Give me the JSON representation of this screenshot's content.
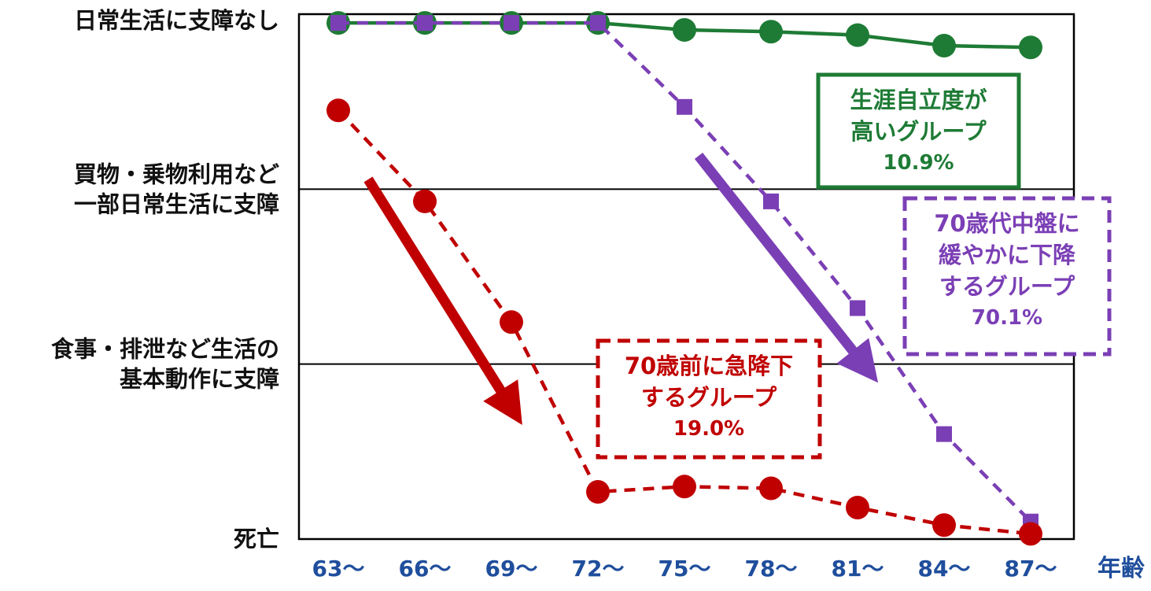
{
  "chart_data": {
    "type": "line",
    "xlabel": "年齢",
    "categories": [
      "63～",
      "66～",
      "69～",
      "72～",
      "75～",
      "78～",
      "81～",
      "84～",
      "87～"
    ],
    "y_levels": [
      {
        "value": 3,
        "lines": [
          "日常生活に支障なし"
        ]
      },
      {
        "value": 2,
        "lines": [
          "買物・乗物利用など",
          "一部日常生活に支障"
        ]
      },
      {
        "value": 1,
        "lines": [
          "食事・排泄など生活の",
          "基本動作に支障"
        ]
      },
      {
        "value": 0,
        "lines": [
          "死亡"
        ]
      }
    ],
    "ylim": [
      0,
      3
    ],
    "series": [
      {
        "color": "#1e7b35",
        "dashed": false,
        "marker": "circle",
        "values": [
          2.95,
          2.95,
          2.95,
          2.95,
          2.91,
          2.9,
          2.88,
          2.82,
          2.81
        ]
      },
      {
        "color": "#7b3fb5",
        "dashed": true,
        "marker": "square",
        "values": [
          2.95,
          2.95,
          2.95,
          2.95,
          2.47,
          1.93,
          1.32,
          0.6,
          0.1
        ]
      },
      {
        "color": "#c00000",
        "dashed": true,
        "marker": "circle",
        "values": [
          2.45,
          1.93,
          1.24,
          0.27,
          0.3,
          0.29,
          0.18,
          0.08,
          0.03
        ]
      }
    ],
    "annotations": [
      {
        "lines": [
          "生涯自立度が",
          "高いグループ"
        ],
        "pct": "10.9%",
        "color": "#1e7b35",
        "border": "solid"
      },
      {
        "lines": [
          "70歳代中盤に",
          "緩やかに下降",
          "するグループ"
        ],
        "pct": "70.1%",
        "color": "#7b3fb5",
        "border": "dashed"
      },
      {
        "lines": [
          "70歳前に急降下",
          "するグループ"
        ],
        "pct": "19.0%",
        "color": "#c00000",
        "border": "dashed"
      }
    ]
  }
}
